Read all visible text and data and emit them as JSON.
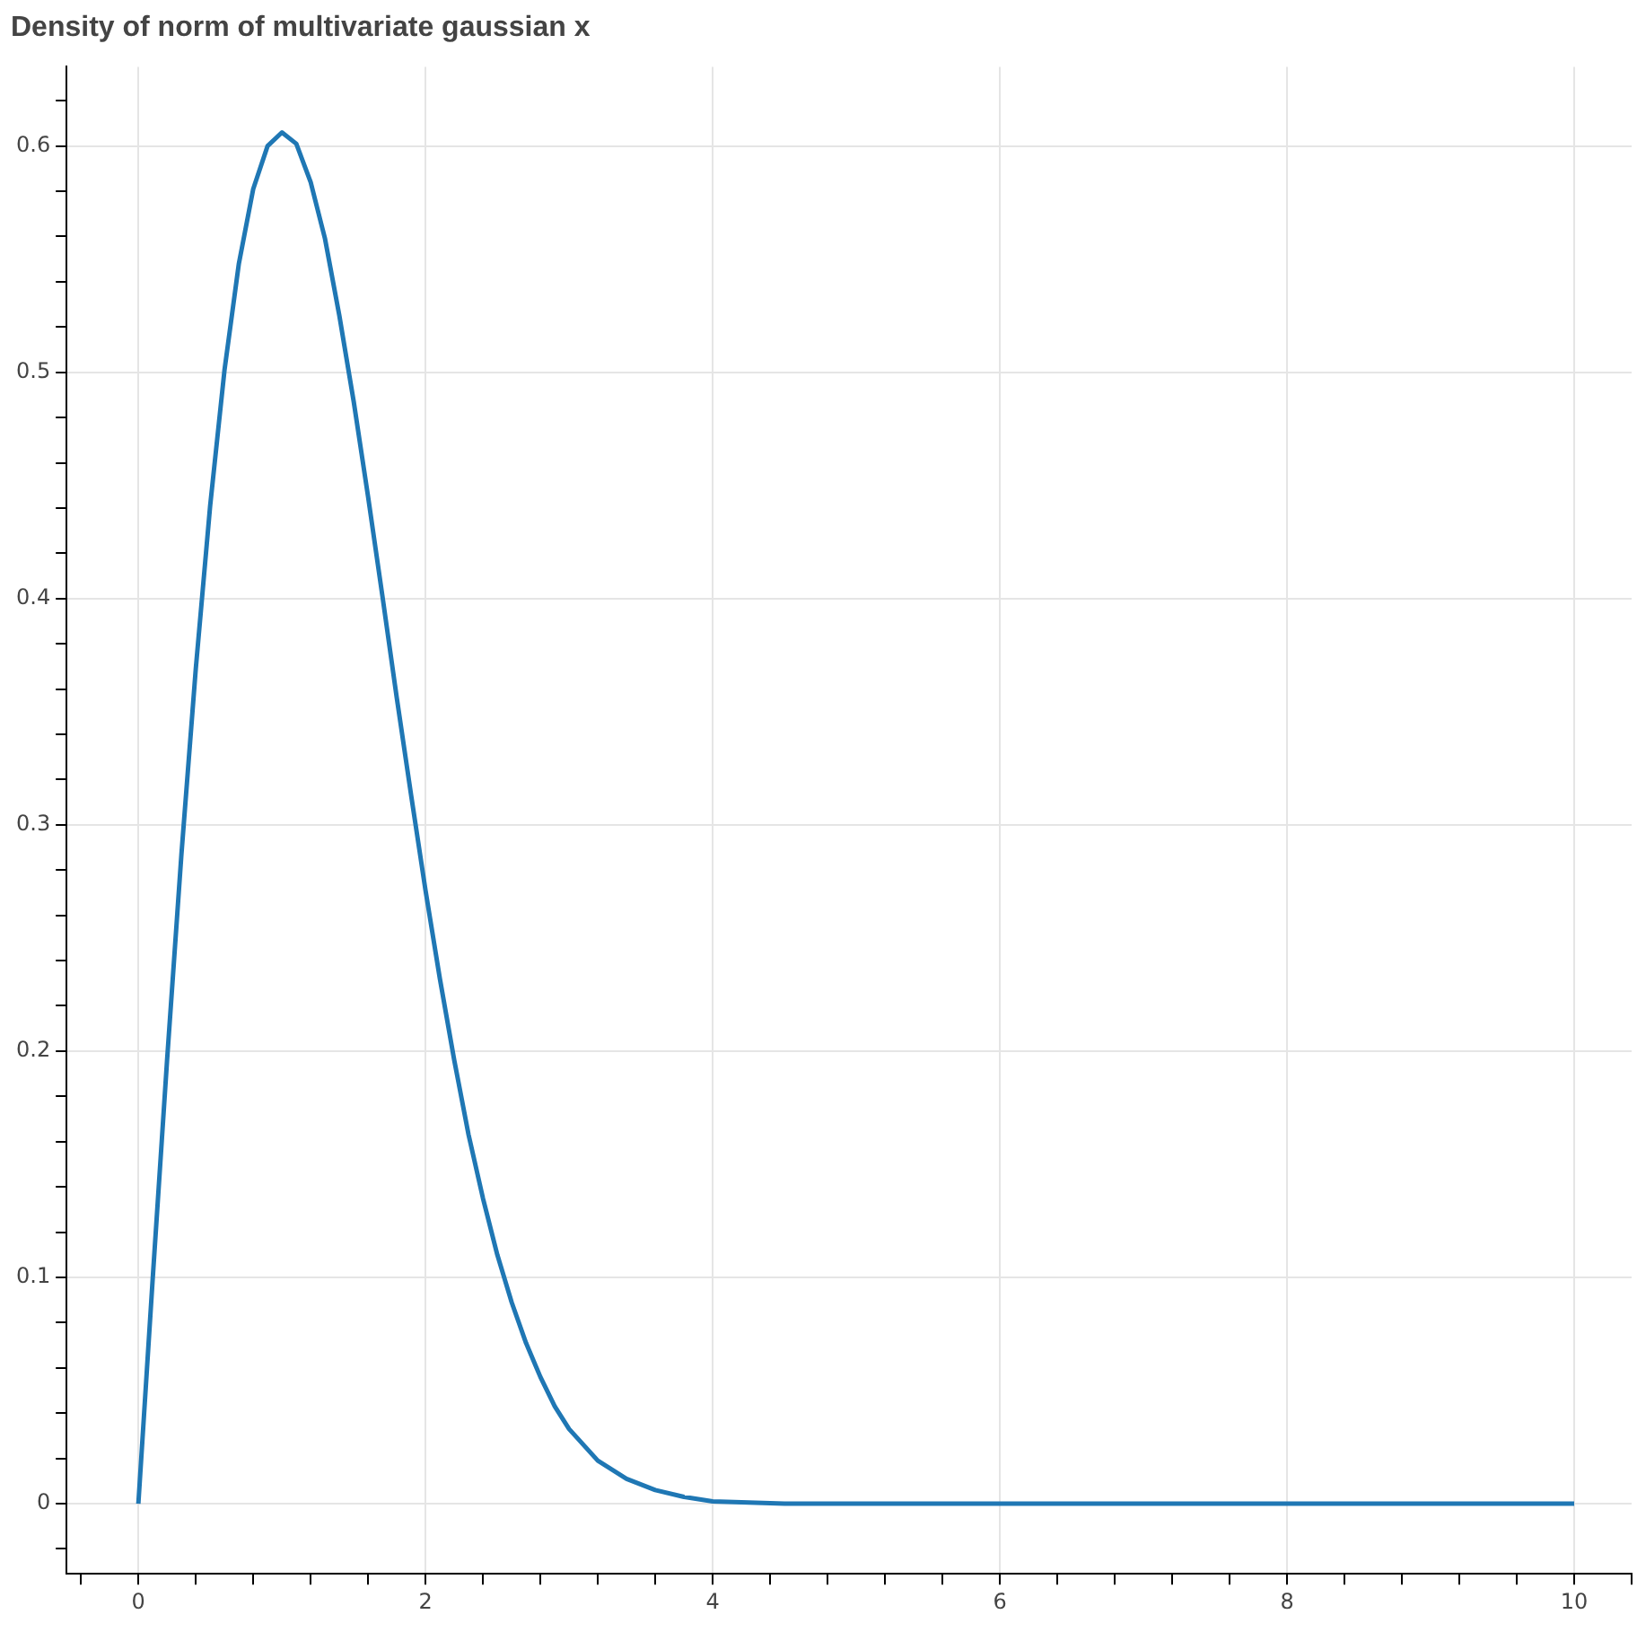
{
  "chart_data": {
    "type": "line",
    "title": "Density of norm of multivariate gaussian x",
    "color": "#1f77b4",
    "grid": true,
    "legend": false,
    "marker": "none",
    "line_style": "solid",
    "x": [
      0,
      0.1,
      0.2,
      0.3,
      0.4,
      0.5,
      0.6,
      0.7,
      0.8,
      0.9,
      1.0,
      1.1,
      1.2,
      1.3,
      1.4,
      1.5,
      1.6,
      1.7,
      1.8,
      1.9,
      2.0,
      2.1,
      2.2,
      2.3,
      2.4,
      2.5,
      2.6,
      2.7,
      2.8,
      2.9,
      3.0,
      3.2,
      3.4,
      3.6,
      3.8,
      4.0,
      4.5,
      5,
      6,
      7,
      8,
      9,
      10
    ],
    "values": [
      0,
      0.0995,
      0.196,
      0.287,
      0.369,
      0.441,
      0.501,
      0.548,
      0.581,
      0.6,
      0.606,
      0.601,
      0.584,
      0.559,
      0.525,
      0.487,
      0.445,
      0.401,
      0.356,
      0.313,
      0.271,
      0.232,
      0.196,
      0.163,
      0.135,
      0.11,
      0.089,
      0.071,
      0.056,
      0.043,
      0.033,
      0.019,
      0.011,
      0.006,
      0.003,
      0.001,
      0,
      0,
      0,
      0,
      0,
      0,
      0
    ],
    "xlim": [
      -0.5,
      10.4
    ],
    "ylim": [
      -0.031,
      0.635
    ],
    "xticks": [
      {
        "value": -0.4,
        "label": null
      },
      0,
      {
        "value": 0.4,
        "label": null
      },
      {
        "value": 0.8,
        "label": null
      },
      {
        "value": 1.2,
        "label": null
      },
      {
        "value": 1.6,
        "label": null
      },
      2,
      {
        "value": 2.4,
        "label": null
      },
      {
        "value": 2.8,
        "label": null
      },
      {
        "value": 3.2,
        "label": null
      },
      {
        "value": 3.6,
        "label": null
      },
      4,
      {
        "value": 4.4,
        "label": null
      },
      {
        "value": 4.8,
        "label": null
      },
      {
        "value": 5.2,
        "label": null
      },
      {
        "value": 5.6,
        "label": null
      },
      6,
      {
        "value": 6.4,
        "label": null
      },
      {
        "value": 6.8,
        "label": null
      },
      {
        "value": 7.2,
        "label": null
      },
      {
        "value": 7.6,
        "label": null
      },
      8,
      {
        "value": 8.4,
        "label": null
      },
      {
        "value": 8.8,
        "label": null
      },
      {
        "value": 9.2,
        "label": null
      },
      {
        "value": 9.6,
        "label": null
      },
      10,
      {
        "value": 10.4,
        "label": null
      }
    ],
    "yticks": [
      {
        "value": -0.02,
        "label": null
      },
      0,
      {
        "value": 0.02,
        "label": null
      },
      {
        "value": 0.04,
        "label": null
      },
      {
        "value": 0.06,
        "label": null
      },
      {
        "value": 0.08,
        "label": null
      },
      0.1,
      {
        "value": 0.12,
        "label": null
      },
      {
        "value": 0.14,
        "label": null
      },
      {
        "value": 0.16,
        "label": null
      },
      {
        "value": 0.18,
        "label": null
      },
      0.2,
      {
        "value": 0.22,
        "label": null
      },
      {
        "value": 0.24,
        "label": null
      },
      {
        "value": 0.26,
        "label": null
      },
      {
        "value": 0.28,
        "label": null
      },
      0.3,
      {
        "value": 0.32,
        "label": null
      },
      {
        "value": 0.34,
        "label": null
      },
      {
        "value": 0.36,
        "label": null
      },
      {
        "value": 0.38,
        "label": null
      },
      0.4,
      {
        "value": 0.42,
        "label": null
      },
      {
        "value": 0.44,
        "label": null
      },
      {
        "value": 0.46,
        "label": null
      },
      {
        "value": 0.48,
        "label": null
      },
      0.5,
      {
        "value": 0.52,
        "label": null
      },
      {
        "value": 0.54,
        "label": null
      },
      {
        "value": 0.56,
        "label": null
      },
      {
        "value": 0.58,
        "label": null
      },
      0.6,
      {
        "value": 0.62,
        "label": null
      }
    ]
  }
}
